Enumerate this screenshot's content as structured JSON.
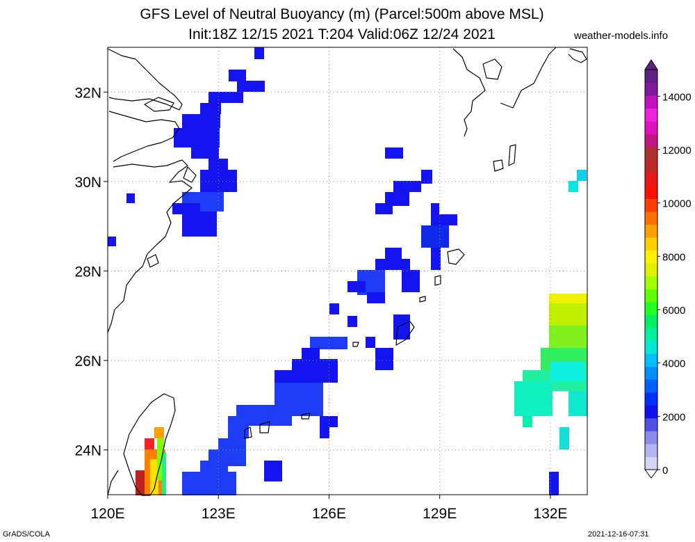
{
  "title": {
    "line1": "GFS Level of Neutral Buoyancy (m) (Parcel:500m above MSL)",
    "line2": "Init:18Z 12/15 2021 T:204 Valid:06Z 12/24 2021",
    "source": "weather-models.info"
  },
  "footer": {
    "left": "GrADS/COLA",
    "right": "2021-12-16-07:31"
  },
  "map": {
    "lon_range": [
      120,
      133
    ],
    "lat_range": [
      23,
      33
    ],
    "lon_ticks": [
      "120E",
      "123E",
      "126E",
      "129E",
      "132E"
    ],
    "lat_ticks": [
      "32N",
      "30N",
      "28N",
      "26N",
      "24N"
    ],
    "gridlines": "dotted"
  },
  "colorbar": {
    "min": 0,
    "max": 15000,
    "labels": [
      "14000",
      "12000",
      "10000",
      "8000",
      "6000",
      "4000",
      "2000",
      "0"
    ],
    "colors": [
      "#d4d4f8",
      "#b4b4f2",
      "#8c8cec",
      "#5050e8",
      "#1010f0",
      "#0030ff",
      "#0060ff",
      "#0090ff",
      "#00c0ff",
      "#00e8d8",
      "#00f0a0",
      "#00f060",
      "#20ff20",
      "#60ff00",
      "#a0ff00",
      "#e0f000",
      "#fff000",
      "#ffd000",
      "#ffa000",
      "#ff7000",
      "#ff4000",
      "#ff1000",
      "#e81818",
      "#c02828",
      "#b03030",
      "#c01880",
      "#e010c0",
      "#f020e0",
      "#c010c0",
      "#8018a0",
      "#602080"
    ]
  }
}
